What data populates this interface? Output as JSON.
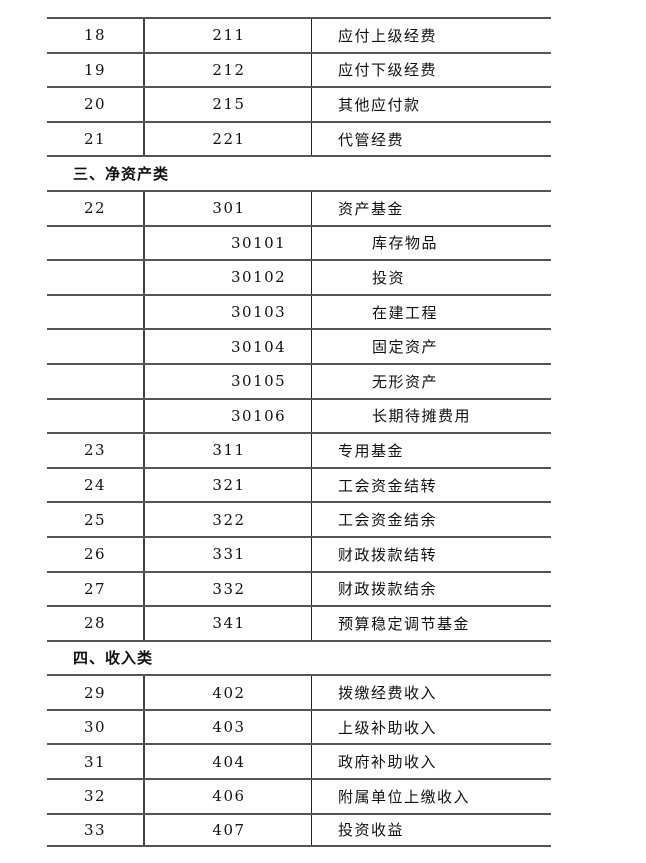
{
  "rows": [
    {
      "type": "item",
      "seq": "18",
      "code": "211",
      "name": "应付上级经费"
    },
    {
      "type": "item",
      "seq": "19",
      "code": "212",
      "name": "应付下级经费"
    },
    {
      "type": "item",
      "seq": "20",
      "code": "215",
      "name": "其他应付款"
    },
    {
      "type": "item",
      "seq": "21",
      "code": "221",
      "name": "代管经费"
    },
    {
      "type": "section",
      "title": "三、净资产类"
    },
    {
      "type": "item",
      "seq": "22",
      "code": "301",
      "name": "资产基金"
    },
    {
      "type": "sub",
      "seq": "",
      "code": "30101",
      "name": "库存物品"
    },
    {
      "type": "sub",
      "seq": "",
      "code": "30102",
      "name": "投资"
    },
    {
      "type": "sub",
      "seq": "",
      "code": "30103",
      "name": "在建工程"
    },
    {
      "type": "sub",
      "seq": "",
      "code": "30104",
      "name": "固定资产"
    },
    {
      "type": "sub",
      "seq": "",
      "code": "30105",
      "name": "无形资产"
    },
    {
      "type": "sub",
      "seq": "",
      "code": "30106",
      "name": "长期待摊费用"
    },
    {
      "type": "item",
      "seq": "23",
      "code": "311",
      "name": "专用基金"
    },
    {
      "type": "item",
      "seq": "24",
      "code": "321",
      "name": "工会资金结转"
    },
    {
      "type": "item",
      "seq": "25",
      "code": "322",
      "name": "工会资金结余"
    },
    {
      "type": "item",
      "seq": "26",
      "code": "331",
      "name": "财政拨款结转"
    },
    {
      "type": "item",
      "seq": "27",
      "code": "332",
      "name": "财政拨款结余"
    },
    {
      "type": "item",
      "seq": "28",
      "code": "341",
      "name": "预算稳定调节基金"
    },
    {
      "type": "section",
      "title": "四、收入类"
    },
    {
      "type": "item",
      "seq": "29",
      "code": "402",
      "name": "拨缴经费收入"
    },
    {
      "type": "item",
      "seq": "30",
      "code": "403",
      "name": "上级补助收入"
    },
    {
      "type": "item",
      "seq": "31",
      "code": "404",
      "name": "政府补助收入"
    },
    {
      "type": "item",
      "seq": "32",
      "code": "406",
      "name": "附属单位上缴收入"
    },
    {
      "type": "item",
      "seq": "33",
      "code": "407",
      "name": "投资收益"
    }
  ]
}
